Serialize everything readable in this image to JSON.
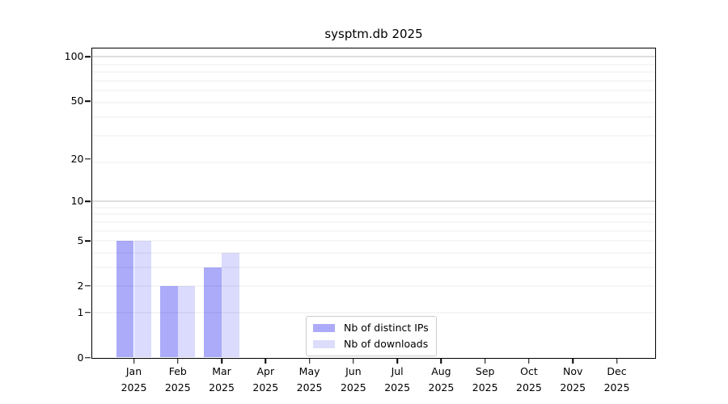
{
  "chart_data": {
    "type": "bar",
    "title": "sysptm.db 2025",
    "year": "2025",
    "categories": [
      "Jan",
      "Feb",
      "Mar",
      "Apr",
      "May",
      "Jun",
      "Jul",
      "Aug",
      "Sep",
      "Oct",
      "Nov",
      "Dec"
    ],
    "series": [
      {
        "name": "Nb of distinct IPs",
        "values": [
          5,
          2,
          3,
          0,
          0,
          0,
          0,
          0,
          0,
          0,
          0,
          0
        ],
        "color": "rgba(0,0,240,0.33)",
        "color_solid": "#ababfa"
      },
      {
        "name": "Nb of downloads",
        "values": [
          5,
          2,
          4,
          0,
          0,
          0,
          0,
          0,
          0,
          0,
          0,
          0
        ],
        "color": "rgba(0,0,240,0.14)",
        "color_solid": "#dcdcfb"
      }
    ],
    "y_axis": {
      "scale": "log10(1+y)",
      "ticks": [
        100,
        50,
        20,
        10,
        5,
        2,
        1,
        0
      ],
      "u_max": 115.5,
      "minor_grid_v": [
        1,
        2,
        3,
        4,
        5,
        6,
        7,
        8,
        9,
        19,
        29,
        39,
        49,
        59,
        69,
        79,
        89
      ],
      "major_grid_v": [
        10,
        100
      ],
      "minor_grid_color": "#ececec",
      "major_grid_color": "#bdbdbd"
    },
    "legend": {
      "position": "lower center",
      "entries": [
        "Nb of distinct IPs",
        "Nb of downloads"
      ]
    },
    "xlabel": "",
    "ylabel": ""
  }
}
